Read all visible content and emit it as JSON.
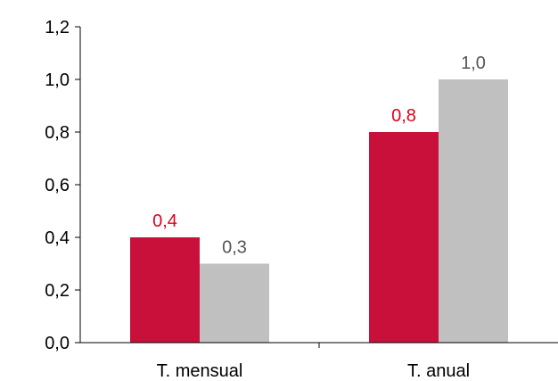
{
  "chart_data": {
    "type": "bar",
    "categories": [
      "T. mensual",
      "T. anual"
    ],
    "series": [
      {
        "values": [
          0.4,
          0.8
        ],
        "labels": [
          "0,4",
          "0,8"
        ],
        "color": "#c8103a",
        "label_color": "#e0001b"
      },
      {
        "values": [
          0.3,
          1.0
        ],
        "labels": [
          "0,3",
          "1,0"
        ],
        "color": "#c0c0c0",
        "label_color": "#555555"
      }
    ],
    "yticks": [
      0.0,
      0.2,
      0.4,
      0.6,
      0.8,
      1.0,
      1.2
    ],
    "ytick_labels": [
      "0,0",
      "0,2",
      "0,4",
      "0,6",
      "0,8",
      "1,0",
      "1,2"
    ],
    "ylim": [
      0,
      1.2
    ],
    "grid": false,
    "legend": "none",
    "axis_color": "#000000"
  }
}
